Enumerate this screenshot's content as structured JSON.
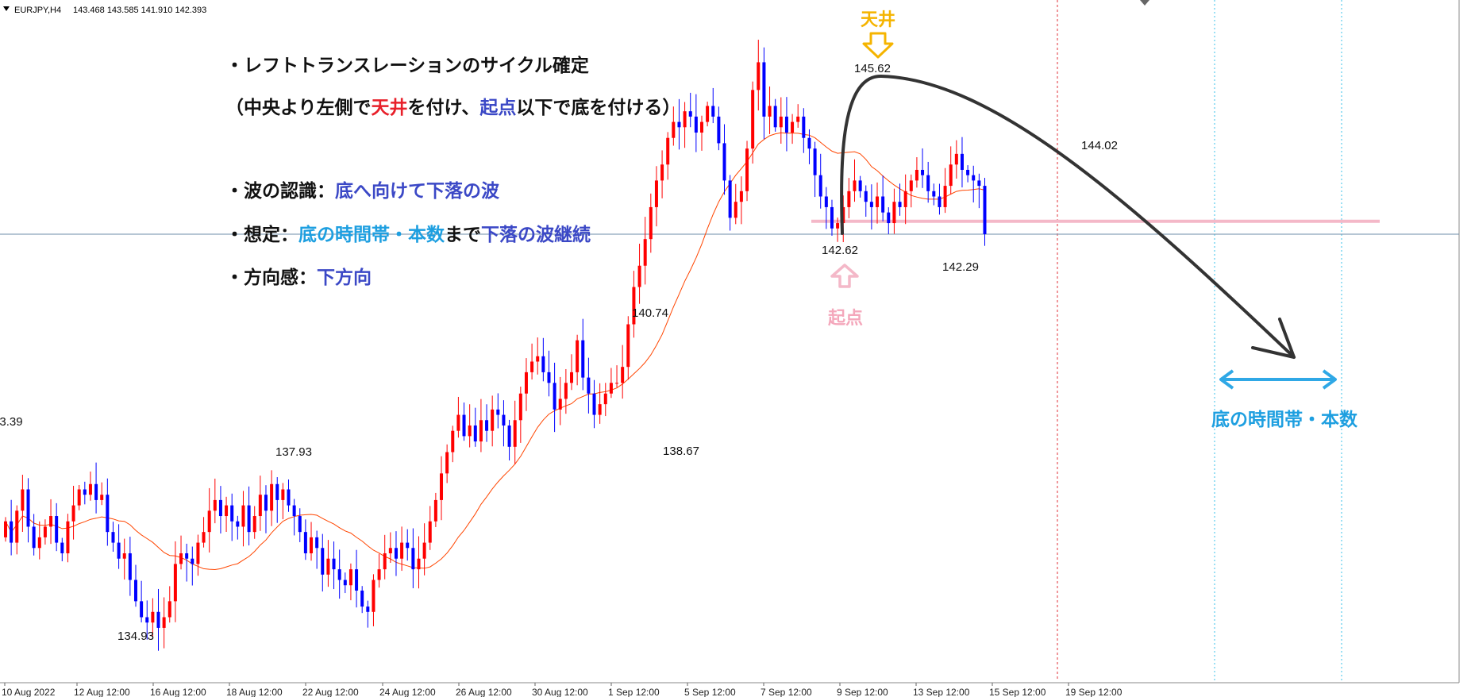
{
  "header": {
    "symbol": "EURJPY,H4",
    "quote": "143.468 143.585 141.910 142.393"
  },
  "colors": {
    "bull": "#ff0000",
    "bear": "#0000ff",
    "ma": "#ff4500",
    "pink": "#f4b8c8",
    "pink_text": "#f4a7bb",
    "gold": "#f5b400",
    "red_dash": "#e0303a",
    "cyan_dash": "#3ac0e8",
    "blue_arrow": "#2fa8e6",
    "arrow": "#333333",
    "text_blue": "#3b48c6",
    "text_sky": "#1e9fe0",
    "text_red": "#e8202a",
    "ref_line": "#6c8ea8"
  },
  "chart_data": {
    "type": "candlestick",
    "symbol": "EURJPY",
    "timeframe": "H4",
    "x_ticks": [
      "10 Aug 2022",
      "12 Aug 12:00",
      "16 Aug 12:00",
      "18 Aug 12:00",
      "22 Aug 12:00",
      "24 Aug 12:00",
      "26 Aug 12:00",
      "30 Aug 12:00",
      "1 Sep 12:00",
      "5 Sep 12:00",
      "7 Sep 12:00",
      "9 Sep 12:00",
      "13 Sep 12:00",
      "15 Sep 12:00",
      "19 Sep 12:00"
    ],
    "y_range": [
      134.0,
      146.7
    ],
    "price_labels": [
      {
        "text": "3.39",
        "price": 137.35
      },
      {
        "text": "137.93",
        "price": 137.93
      },
      {
        "text": "134.93",
        "price": 134.93
      },
      {
        "text": "140.74",
        "price": 140.74
      },
      {
        "text": "138.67",
        "price": 138.67
      },
      {
        "text": "145.62",
        "price": 145.62
      },
      {
        "text": "142.62",
        "price": 142.62
      },
      {
        "text": "142.29",
        "price": 142.29
      },
      {
        "text": "144.02",
        "price": 144.02
      }
    ],
    "close_line": 142.393,
    "support_level": 142.62,
    "closes": [
      137.0,
      136.6,
      137.2,
      137.6,
      136.9,
      136.5,
      136.7,
      136.9,
      137.1,
      136.6,
      136.4,
      137.0,
      137.3,
      137.6,
      137.5,
      137.7,
      137.4,
      137.5,
      136.8,
      136.6,
      136.3,
      136.4,
      135.9,
      135.5,
      135.2,
      135.1,
      135.3,
      135.0,
      135.2,
      135.5,
      136.2,
      136.4,
      136.3,
      136.2,
      136.6,
      136.8,
      137.2,
      137.4,
      137.1,
      137.3,
      137.0,
      136.9,
      137.3,
      136.8,
      137.1,
      137.5,
      137.2,
      137.7,
      137.4,
      137.6,
      137.3,
      137.1,
      136.8,
      136.4,
      136.7,
      136.5,
      136.0,
      136.3,
      136.1,
      135.9,
      135.8,
      136.1,
      135.7,
      135.4,
      135.3,
      135.9,
      136.1,
      136.4,
      136.5,
      136.3,
      136.6,
      136.5,
      136.1,
      136.3,
      136.6,
      137.0,
      137.4,
      137.9,
      138.3,
      138.7,
      139.0,
      138.6,
      138.8,
      138.5,
      138.9,
      138.7,
      139.1,
      139.0,
      138.8,
      138.4,
      138.9,
      139.4,
      139.8,
      140.0,
      140.1,
      139.8,
      139.6,
      139.1,
      139.3,
      139.6,
      139.8,
      140.4,
      139.7,
      139.4,
      139.0,
      139.2,
      139.4,
      139.6,
      139.6,
      139.9,
      140.7,
      141.4,
      141.8,
      142.3,
      142.9,
      143.4,
      143.7,
      144.2,
      144.5,
      144.4,
      144.7,
      144.6,
      144.3,
      144.5,
      144.8,
      144.6,
      144.1,
      143.4,
      142.7,
      143.0,
      143.2,
      144.0,
      145.1,
      145.62,
      144.6,
      144.8,
      144.4,
      144.6,
      144.3,
      144.5,
      144.6,
      144.2,
      144.0,
      143.5,
      143.1,
      142.9,
      142.5,
      142.6,
      142.9,
      143.2,
      143.4,
      143.2,
      143.0,
      142.9,
      143.1,
      142.8,
      142.6,
      143.0,
      142.9,
      143.2,
      143.4,
      143.6,
      143.5,
      143.2,
      143.1,
      142.9,
      143.3,
      143.7,
      143.9,
      143.6,
      143.5,
      143.4,
      143.3,
      142.393
    ]
  },
  "annotations": {
    "lines": [
      [
        {
          "t": "・レフトトランスレーションのサイクル確定",
          "c": "black"
        }
      ],
      [
        {
          "t": "（中央より左側で",
          "c": "black"
        },
        {
          "t": "天井",
          "c": "red"
        },
        {
          "t": "を付け、",
          "c": "black"
        },
        {
          "t": "起点",
          "c": "blue"
        },
        {
          "t": "以下で底を付ける）",
          "c": "black"
        }
      ],
      [
        {
          "t": "・波の認識：",
          "c": "black"
        },
        {
          "t": "底へ向けて下落の波",
          "c": "blue"
        }
      ],
      [
        {
          "t": "・想定：",
          "c": "black"
        },
        {
          "t": "底の時間帯・本数",
          "c": "sky"
        },
        {
          "t": "まで",
          "c": "black"
        },
        {
          "t": "下落の波継続",
          "c": "blue"
        }
      ],
      [
        {
          "t": "・方向感：",
          "c": "black"
        },
        {
          "t": "下方向",
          "c": "blue"
        }
      ]
    ],
    "ceiling_label": "天井",
    "origin_label": "起点",
    "bottom_zone_label": "底の時間帯・本数"
  }
}
